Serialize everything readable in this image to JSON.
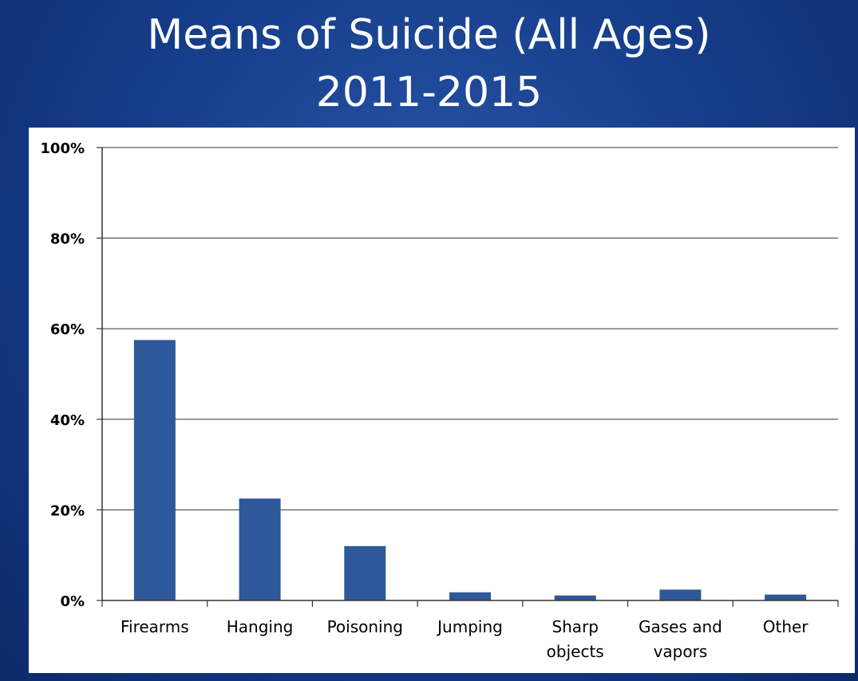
{
  "slide": {
    "title_line1": "Means of Suicide (All Ages)",
    "title_line2": "2011-2015"
  },
  "chart_data": {
    "type": "bar",
    "title": "Means of Suicide (All Ages) 2011-2015",
    "categories": [
      "Firearms",
      "Hanging",
      "Poisoning",
      "Jumping",
      "Sharp objects",
      "Gases and vapors",
      "Other"
    ],
    "category_label_lines": [
      [
        "Firearms"
      ],
      [
        "Hanging"
      ],
      [
        "Poisoning"
      ],
      [
        "Jumping"
      ],
      [
        "Sharp",
        "objects"
      ],
      [
        "Gases and",
        "vapors"
      ],
      [
        "Other"
      ]
    ],
    "values": [
      57.5,
      22.5,
      12.0,
      1.8,
      1.1,
      2.4,
      1.3
    ],
    "unit": "%",
    "ylim": [
      0,
      100
    ],
    "yticks": [
      0,
      20,
      40,
      60,
      80,
      100
    ],
    "ytick_labels": [
      "0%",
      "20%",
      "40%",
      "60%",
      "80%",
      "100%"
    ],
    "grid": true,
    "legend": "none",
    "colors": {
      "bar": "#2e5899",
      "grid": "#333333",
      "axis": "#333333",
      "background_dark": "#0c2a6a",
      "background_light": "#2a55a8"
    }
  }
}
